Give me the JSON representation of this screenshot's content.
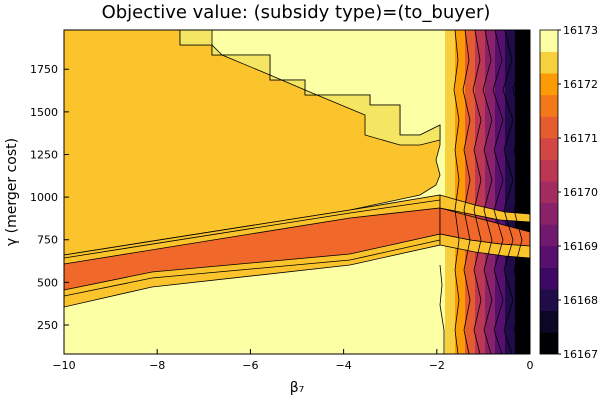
{
  "chart_data": {
    "type": "heatmap",
    "subtype": "filled-contour",
    "title": "Objective value: (subsidy type)=(to_buyer)",
    "xlabel": "β₇",
    "ylabel": "γ (merger cost)",
    "xlim": [
      -10,
      0
    ],
    "ylim": [
      80,
      1980
    ],
    "x_ticks": [
      -10,
      -8,
      -6,
      -4,
      -2,
      0
    ],
    "y_ticks": [
      250,
      500,
      750,
      1000,
      1250,
      1500,
      1750
    ],
    "colorbar": {
      "range": [
        16167,
        16173
      ],
      "ticks": [
        16167,
        16168,
        16169,
        16170,
        16171,
        16172,
        16173
      ],
      "levels": 15,
      "colormap": "inferno"
    },
    "grid": false,
    "legend": "colorbar-right",
    "x": [
      -10,
      -8,
      -6,
      -4,
      -2,
      0
    ],
    "y": [
      250,
      500,
      750,
      1000,
      1250,
      1500,
      1750
    ],
    "z_approx": [
      [
        16172.8,
        16172.8,
        16172.8,
        16172.8,
        16172.6,
        16167.0
      ],
      [
        16172.8,
        16171.2,
        16172.4,
        16172.6,
        16172.4,
        16167.5
      ],
      [
        16172.2,
        16171.0,
        16170.9,
        16170.9,
        16171.1,
        16168.0
      ],
      [
        16172.2,
        16172.2,
        16172.1,
        16171.9,
        16171.5,
        16167.2
      ],
      [
        16172.2,
        16172.2,
        16172.2,
        16172.2,
        16172.0,
        16167.5
      ],
      [
        16172.2,
        16172.2,
        16172.3,
        16172.4,
        16172.6,
        16167.5
      ],
      [
        16172.2,
        16172.4,
        16172.8,
        16172.8,
        16172.6,
        16167.2
      ]
    ]
  },
  "colors": {
    "level_0": "#000004",
    "level_1": "#0b0724",
    "level_2": "#210c4a",
    "level_3": "#3d0965",
    "level_4": "#57106e",
    "level_5": "#71196e",
    "level_6": "#8a226a",
    "level_7": "#a32c61",
    "level_8": "#bc3754",
    "level_9": "#d24644",
    "level_10": "#e55c30",
    "level_11": "#f37819",
    "level_12": "#fb9b06",
    "level_13": "#f7d13d",
    "level_14": "#fcffa4"
  }
}
